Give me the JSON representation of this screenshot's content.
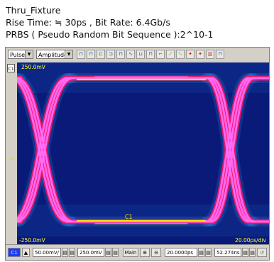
{
  "caption": {
    "title": "Thru_Fixture",
    "rise_time_line": "Rise Time: ≒  30ps , Bit Rate: 6.4Gb/s",
    "prbs_line": "PRBS ( Pseudo Random Bit Sequence ):2^10-1"
  },
  "toolbar": {
    "mode_select": "Pulse",
    "measure_select": "Amplitude"
  },
  "scope": {
    "channel_tag": "C1",
    "top_label": "250.0mV",
    "bottom_label": "-250.0mV",
    "time_label": "20.00ps/div",
    "trace_label": "C1",
    "colors": {
      "background": "#0a1a78",
      "outer": "#ff1060",
      "inner": "#ff70ff",
      "noise": "#2aa0ff",
      "core": "#ffe000"
    }
  },
  "statusbar": {
    "channel": "C1",
    "volts_div": "50.00mV/",
    "offset": "250.0mV",
    "timebase": "Main",
    "time_div": "20.0000ps",
    "position": "52.274ns"
  }
}
